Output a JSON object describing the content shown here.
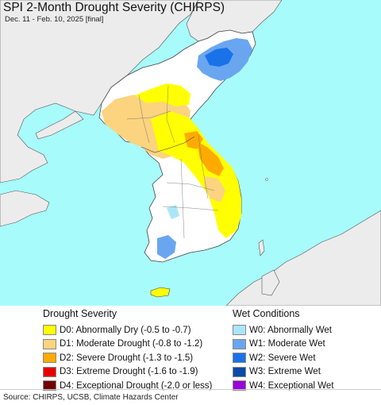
{
  "title": "SPI 2-Month Drought Severity (CHIRPS)",
  "subtitle": "Dec. 11 - Feb. 10, 2025 [final]",
  "colors": {
    "sea": "#a8fbfb",
    "land": "#ffffff",
    "outside_land": "#ececec",
    "d0": "#ffff00",
    "d1": "#fcd37f",
    "d2": "#ffaa00",
    "w1": "#6aa6f0",
    "w2": "#1a72e8"
  },
  "drought_legend": {
    "title": "Drought Severity",
    "items": [
      {
        "label": "D0: Abnormally Dry (-0.5 to -0.7)",
        "color": "#ffff00"
      },
      {
        "label": "D1: Moderate Drought (-0.8 to -1.2)",
        "color": "#fcd37f"
      },
      {
        "label": "D2: Severe Drought (-1.3 to -1.5)",
        "color": "#ffaa00"
      },
      {
        "label": "D3: Extreme Drought (-1.6 to -1.9)",
        "color": "#e60000"
      },
      {
        "label": "D4: Exceptional Drought (-2.0 or less)",
        "color": "#730000"
      }
    ]
  },
  "wet_legend": {
    "title": "Wet Conditions",
    "items": [
      {
        "label": "W0: Abnormally Wet",
        "color": "#aae6f8"
      },
      {
        "label": "W1: Moderate Wet",
        "color": "#6aa6f0"
      },
      {
        "label": "W2: Severe Wet",
        "color": "#1a72e8"
      },
      {
        "label": "W3: Extreme Wet",
        "color": "#0a4aa8"
      },
      {
        "label": "W4: Exceptional Wet",
        "color": "#9a00d8"
      }
    ]
  },
  "source": "Source: CHIRPS, UCSB, Climate Hazards Center"
}
